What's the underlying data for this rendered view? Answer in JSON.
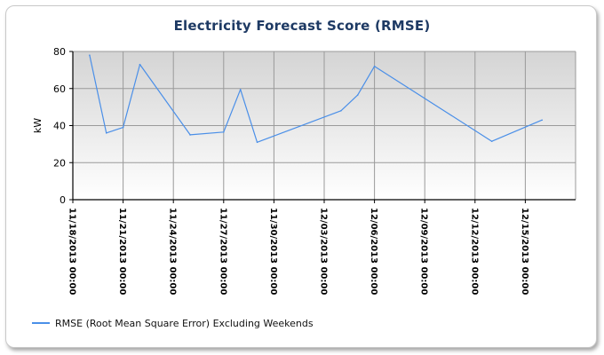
{
  "chart_data": {
    "type": "line",
    "title": "Electricity Forecast Score (RMSE)",
    "xlabel": "",
    "ylabel": "kW",
    "ylim": [
      0,
      80
    ],
    "yticks": [
      "0",
      "20",
      "40",
      "60",
      "80"
    ],
    "xlim": [
      "11/18/2013 00:00",
      "12/18/2013 00:00"
    ],
    "xticks": [
      "11/18/2013 00:00",
      "11/21/2013 00:00",
      "11/24/2013 00:00",
      "11/27/2013 00:00",
      "11/30/2013 00:00",
      "12/03/2013 00:00",
      "12/06/2013 00:00",
      "12/09/2013 00:00",
      "12/12/2013 00:00",
      "12/15/2013 00:00"
    ],
    "grid": true,
    "legend_position": "bottom-left",
    "colors": {
      "series": "#4a8fe8",
      "plot_bg_top": "#d4d4d4",
      "plot_bg_bottom": "#ffffff",
      "grid": "#9a9a9a"
    },
    "series": [
      {
        "name": "RMSE (Root Mean Square Error) Excluding Weekends",
        "points": [
          {
            "x": "11/19/2013 00:00",
            "y": 78
          },
          {
            "x": "11/20/2013 00:00",
            "y": 36
          },
          {
            "x": "11/21/2013 00:00",
            "y": 39
          },
          {
            "x": "11/22/2013 00:00",
            "y": 73
          },
          {
            "x": "11/25/2013 00:00",
            "y": 35
          },
          {
            "x": "11/27/2013 00:00",
            "y": 36.5
          },
          {
            "x": "11/28/2013 00:00",
            "y": 59.5
          },
          {
            "x": "11/29/2013 00:00",
            "y": 31
          },
          {
            "x": "12/04/2013 00:00",
            "y": 48
          },
          {
            "x": "12/05/2013 00:00",
            "y": 56.5
          },
          {
            "x": "12/06/2013 00:00",
            "y": 72
          },
          {
            "x": "12/13/2013 00:00",
            "y": 31.5
          },
          {
            "x": "12/16/2013 00:00",
            "y": 43
          }
        ]
      }
    ]
  }
}
